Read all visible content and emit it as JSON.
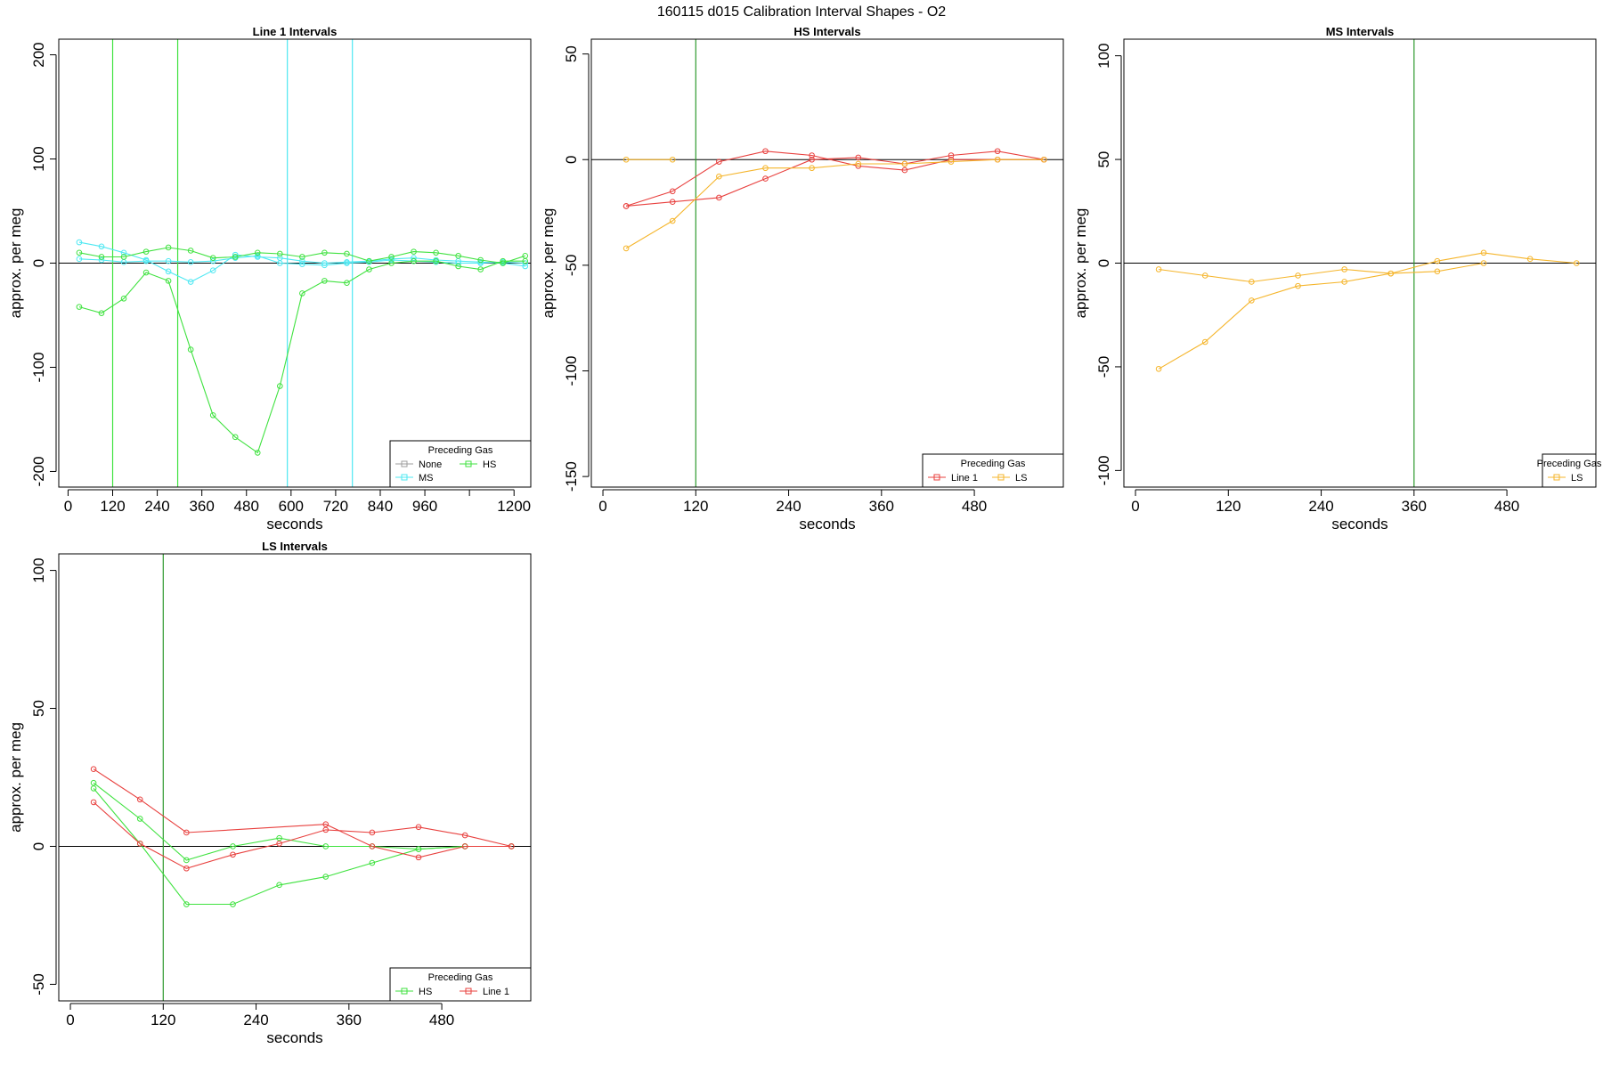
{
  "figure": {
    "title": "160115   d015   Calibration Interval Shapes - O2"
  },
  "colors": {
    "None": "#9e9e9e",
    "MS": "#4ee8f2",
    "HS": "#3fe23f",
    "Line 1": "#e8403e",
    "LS": "#f5b52b",
    "zero_line": "#000000",
    "vline_green": "#2e9a2e",
    "frame": "#000000"
  },
  "legend_title": "Preceding Gas",
  "chart_data": [
    {
      "type": "line",
      "title": "Line 1 Intervals",
      "xlabel": "seconds",
      "ylabel": "approx. per meg",
      "xlim": [
        -25,
        1245
      ],
      "ylim": [
        -215,
        215
      ],
      "xticks": [
        0,
        120,
        240,
        360,
        480,
        600,
        720,
        840,
        960,
        1080,
        1200
      ],
      "xtick_labels": [
        "0",
        "120",
        "240",
        "360",
        "480",
        "600",
        "720",
        "840",
        "960",
        "",
        "1200"
      ],
      "yticks": [
        -200,
        -100,
        0,
        100,
        200
      ],
      "ytick_labels": [
        "-200",
        "-100",
        "0",
        "100",
        "200"
      ],
      "vlines": [
        {
          "x": 120,
          "color": "#3fe23f"
        },
        {
          "x": 295,
          "color": "#3fe23f"
        },
        {
          "x": 590,
          "color": "#4ee8f2"
        },
        {
          "x": 765,
          "color": "#4ee8f2"
        }
      ],
      "legend": {
        "position": "bottom-right",
        "columns": 2,
        "entries": [
          "None",
          "HS",
          "MS"
        ]
      },
      "series": [
        {
          "name": "MS",
          "x": [
            30,
            90,
            150,
            210,
            270,
            330,
            390,
            450,
            510,
            570,
            630,
            690,
            750,
            810,
            870,
            930,
            990,
            1050,
            1110,
            1170,
            1230
          ],
          "y": [
            20,
            16,
            10,
            3,
            -8,
            -18,
            -7,
            8,
            6,
            5,
            2,
            0,
            1,
            2,
            4,
            5,
            3,
            2,
            1,
            0,
            -3
          ]
        },
        {
          "name": "MS",
          "x": [
            30,
            90,
            150,
            210,
            270,
            330,
            390,
            450,
            510,
            570,
            630,
            690,
            750,
            810,
            870,
            930,
            990,
            1050,
            1110,
            1170,
            1230
          ],
          "y": [
            4,
            3,
            1,
            2,
            2,
            1,
            2,
            5,
            7,
            0,
            -1,
            -2,
            0,
            1,
            3,
            2,
            1,
            0,
            0,
            1,
            0
          ]
        },
        {
          "name": "HS",
          "x": [
            30,
            90,
            150,
            210,
            270,
            330,
            390,
            450,
            510,
            570,
            630,
            690,
            750,
            810,
            870,
            930,
            990,
            1050,
            1110,
            1170,
            1230
          ],
          "y": [
            10,
            6,
            6,
            11,
            15,
            12,
            5,
            6,
            10,
            9,
            6,
            10,
            9,
            2,
            6,
            11,
            10,
            7,
            3,
            0,
            7
          ]
        },
        {
          "name": "HS",
          "x": [
            30,
            90,
            150,
            210,
            270,
            330,
            390,
            450,
            510,
            570,
            630,
            690,
            750,
            810,
            870,
            930,
            990,
            1050,
            1110,
            1170,
            1230
          ],
          "y": [
            -42,
            -48,
            -34,
            -9,
            -17,
            -83,
            -146,
            -167,
            -182,
            -118,
            -29,
            -17,
            -19,
            -6,
            0,
            2,
            2,
            -3,
            -6,
            2,
            2
          ]
        }
      ]
    },
    {
      "type": "line",
      "title": "HS Intervals",
      "xlabel": "seconds",
      "ylabel": "approx. per meg",
      "xlim": [
        -15,
        595
      ],
      "ylim": [
        -155,
        57
      ],
      "xticks": [
        0,
        120,
        240,
        360,
        480
      ],
      "xtick_labels": [
        "0",
        "120",
        "240",
        "360",
        "480"
      ],
      "yticks": [
        -150,
        -100,
        -50,
        0,
        50
      ],
      "ytick_labels": [
        "-150",
        "-100",
        "-50",
        "0",
        "50"
      ],
      "vlines": [
        {
          "x": 120,
          "color": "#2e9a2e"
        }
      ],
      "legend": {
        "position": "bottom-right",
        "columns": 2,
        "entries": [
          "Line 1",
          "LS"
        ]
      },
      "series": [
        {
          "name": "Line 1",
          "x": [
            30,
            90,
            150,
            210,
            270,
            330,
            390,
            450,
            510,
            570
          ],
          "y": [
            -22,
            -20,
            -18,
            -9,
            0,
            1,
            -2,
            2,
            4,
            0
          ]
        },
        {
          "name": "Line 1",
          "x": [
            30,
            90,
            150,
            210,
            270,
            330,
            390,
            450,
            510,
            570
          ],
          "y": [
            -22,
            -15,
            -1,
            4,
            2,
            -3,
            -5,
            0,
            0,
            0
          ]
        },
        {
          "name": "LS",
          "x": [
            30,
            90,
            150,
            210,
            270,
            330,
            390,
            450,
            510,
            570
          ],
          "y": [
            -42,
            -29,
            -8,
            -4,
            -4,
            -2,
            -2,
            -1,
            0,
            0
          ]
        },
        {
          "name": "LS",
          "x": [
            30,
            90
          ],
          "y": [
            0,
            0
          ]
        }
      ]
    },
    {
      "type": "line",
      "title": "MS Intervals",
      "xlabel": "seconds",
      "ylabel": "approx. per meg",
      "xlim": [
        -15,
        595
      ],
      "ylim": [
        -108,
        108
      ],
      "xticks": [
        0,
        120,
        240,
        360,
        480
      ],
      "xtick_labels": [
        "0",
        "120",
        "240",
        "360",
        "480"
      ],
      "yticks": [
        -100,
        -50,
        0,
        50,
        100
      ],
      "ytick_labels": [
        "-100",
        "-50",
        "0",
        "50",
        "100"
      ],
      "vlines": [
        {
          "x": 360,
          "color": "#2e9a2e"
        }
      ],
      "legend": {
        "position": "bottom-right",
        "columns": 1,
        "entries": [
          "LS"
        ]
      },
      "series": [
        {
          "name": "LS",
          "x": [
            30,
            90,
            150,
            210,
            270,
            330,
            390,
            450,
            510,
            570
          ],
          "y": [
            -3,
            -6,
            -9,
            -6,
            -3,
            -5,
            1,
            5,
            2,
            0
          ]
        },
        {
          "name": "LS",
          "x": [
            30,
            90,
            150,
            210,
            270,
            330,
            390,
            450
          ],
          "y": [
            -51,
            -38,
            -18,
            -11,
            -9,
            -5,
            -4,
            0
          ]
        }
      ]
    },
    {
      "type": "line",
      "title": "LS Intervals",
      "xlabel": "seconds",
      "ylabel": "approx. per meg",
      "xlim": [
        -15,
        595
      ],
      "ylim": [
        -56,
        106
      ],
      "xticks": [
        0,
        120,
        240,
        360,
        480
      ],
      "xtick_labels": [
        "0",
        "120",
        "240",
        "360",
        "480"
      ],
      "yticks": [
        -50,
        0,
        50,
        100
      ],
      "ytick_labels": [
        "-50",
        "0",
        "50",
        "100"
      ],
      "vlines": [
        {
          "x": 120,
          "color": "#2e9a2e"
        }
      ],
      "legend": {
        "position": "bottom-right",
        "columns": 2,
        "entries": [
          "HS",
          "Line 1"
        ]
      },
      "series": [
        {
          "name": "HS",
          "x": [
            30,
            90,
            150,
            210,
            270,
            330,
            390,
            450,
            510,
            570
          ],
          "y": [
            23,
            10,
            -5,
            0,
            3,
            0,
            0,
            -1,
            0,
            0
          ]
        },
        {
          "name": "HS",
          "x": [
            30,
            90,
            150,
            210,
            270,
            330,
            390,
            450,
            510,
            570
          ],
          "y": [
            21,
            1,
            -21,
            -21,
            -14,
            -11,
            -6,
            -1,
            0,
            0
          ]
        },
        {
          "name": "Line 1",
          "x": [
            30,
            90,
            150,
            330,
            390,
            450,
            510,
            570
          ],
          "y": [
            28,
            17,
            5,
            8,
            0,
            -4,
            0,
            0
          ]
        },
        {
          "name": "Line 1",
          "x": [
            30,
            90,
            150,
            210,
            270,
            330,
            390,
            450,
            510,
            570
          ],
          "y": [
            16,
            1,
            -8,
            -3,
            1,
            6,
            5,
            7,
            4,
            0
          ]
        }
      ]
    }
  ]
}
